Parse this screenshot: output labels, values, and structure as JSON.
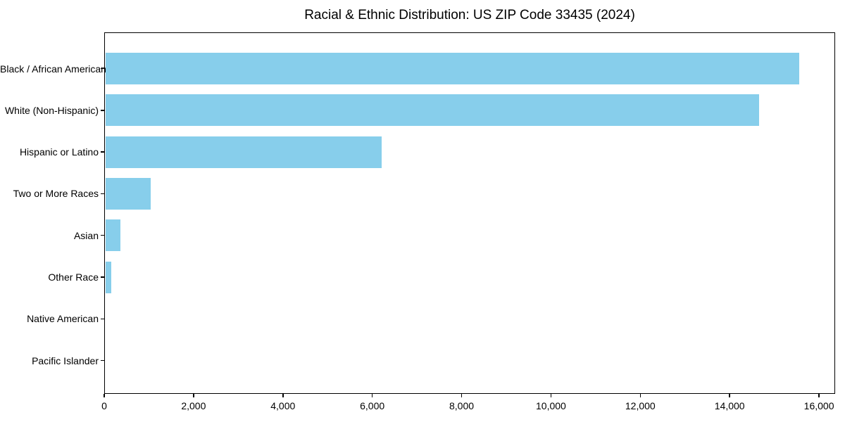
{
  "chart_data": {
    "type": "bar",
    "orientation": "horizontal",
    "title": "Racial & Ethnic Distribution: US ZIP Code 33435 (2024)",
    "categories": [
      "Black / African American",
      "White (Non-Hispanic)",
      "Hispanic or Latino",
      "Two or More Races",
      "Asian",
      "Other Race",
      "Native American",
      "Pacific Islander"
    ],
    "values": [
      15540,
      14640,
      6190,
      1020,
      340,
      140,
      0,
      0
    ],
    "xlabel": "",
    "ylabel": "",
    "xlim": [
      0,
      16314
    ],
    "x_ticks": [
      0,
      2000,
      4000,
      6000,
      8000,
      10000,
      12000,
      14000,
      16000
    ],
    "x_tick_labels": [
      "0",
      "2,000",
      "4,000",
      "6,000",
      "8,000",
      "10,000",
      "12,000",
      "14,000",
      "16,000"
    ],
    "bar_color": "#87CEEB",
    "spine_color": "#000000",
    "grid": false,
    "legend": null
  }
}
